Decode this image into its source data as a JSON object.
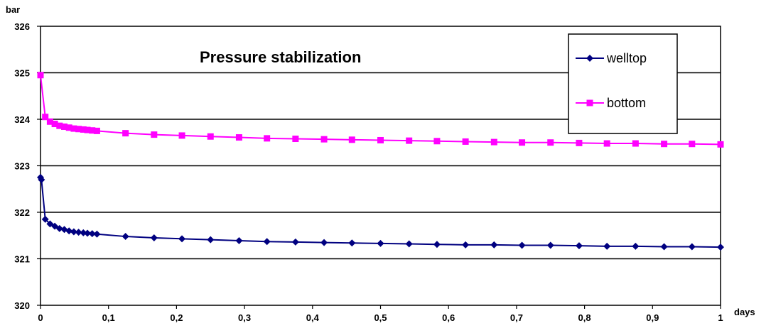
{
  "chart_data": {
    "type": "line",
    "title": "Pressure stabilization",
    "xlabel": "days",
    "ylabel": "bar",
    "xlim": [
      0,
      1
    ],
    "ylim": [
      320,
      326
    ],
    "x_ticks": [
      "0",
      "0,1",
      "0,2",
      "0,3",
      "0,4",
      "0,5",
      "0,6",
      "0,7",
      "0,8",
      "0,9",
      "1"
    ],
    "x_tick_values": [
      0,
      0.1,
      0.2,
      0.3,
      0.4,
      0.5,
      0.6,
      0.7,
      0.8,
      0.9,
      1.0
    ],
    "y_ticks": [
      "320",
      "321",
      "322",
      "323",
      "324",
      "325",
      "326"
    ],
    "y_tick_values": [
      320,
      321,
      322,
      323,
      324,
      325,
      326
    ],
    "grid": "horizontal",
    "legend_position": "top-right",
    "series": [
      {
        "name": "welltop",
        "color": "#000080",
        "marker": "diamond",
        "x": [
          0,
          0.0014,
          0.007,
          0.014,
          0.021,
          0.028,
          0.035,
          0.042,
          0.049,
          0.056,
          0.063,
          0.069,
          0.076,
          0.083,
          0.125,
          0.167,
          0.208,
          0.25,
          0.292,
          0.333,
          0.375,
          0.417,
          0.458,
          0.5,
          0.542,
          0.583,
          0.625,
          0.667,
          0.708,
          0.75,
          0.792,
          0.833,
          0.875,
          0.917,
          0.958,
          1.0
        ],
        "y": [
          322.75,
          322.7,
          321.85,
          321.75,
          321.7,
          321.65,
          321.63,
          321.6,
          321.58,
          321.57,
          321.56,
          321.55,
          321.54,
          321.53,
          321.48,
          321.45,
          321.43,
          321.41,
          321.39,
          321.37,
          321.36,
          321.35,
          321.34,
          321.33,
          321.32,
          321.31,
          321.3,
          321.3,
          321.29,
          321.29,
          321.28,
          321.27,
          321.27,
          321.26,
          321.26,
          321.25
        ]
      },
      {
        "name": "bottom",
        "color": "#ff00ff",
        "marker": "square",
        "x": [
          0,
          0.007,
          0.014,
          0.021,
          0.028,
          0.035,
          0.042,
          0.049,
          0.056,
          0.063,
          0.069,
          0.076,
          0.083,
          0.125,
          0.167,
          0.208,
          0.25,
          0.292,
          0.333,
          0.375,
          0.417,
          0.458,
          0.5,
          0.542,
          0.583,
          0.625,
          0.667,
          0.708,
          0.75,
          0.792,
          0.833,
          0.875,
          0.917,
          0.958,
          1.0
        ],
        "y": [
          324.95,
          324.05,
          323.95,
          323.9,
          323.86,
          323.84,
          323.82,
          323.8,
          323.79,
          323.78,
          323.77,
          323.76,
          323.75,
          323.7,
          323.67,
          323.65,
          323.63,
          323.61,
          323.59,
          323.58,
          323.57,
          323.56,
          323.55,
          323.54,
          323.53,
          323.52,
          323.51,
          323.5,
          323.5,
          323.49,
          323.48,
          323.48,
          323.47,
          323.47,
          323.46
        ]
      }
    ]
  }
}
